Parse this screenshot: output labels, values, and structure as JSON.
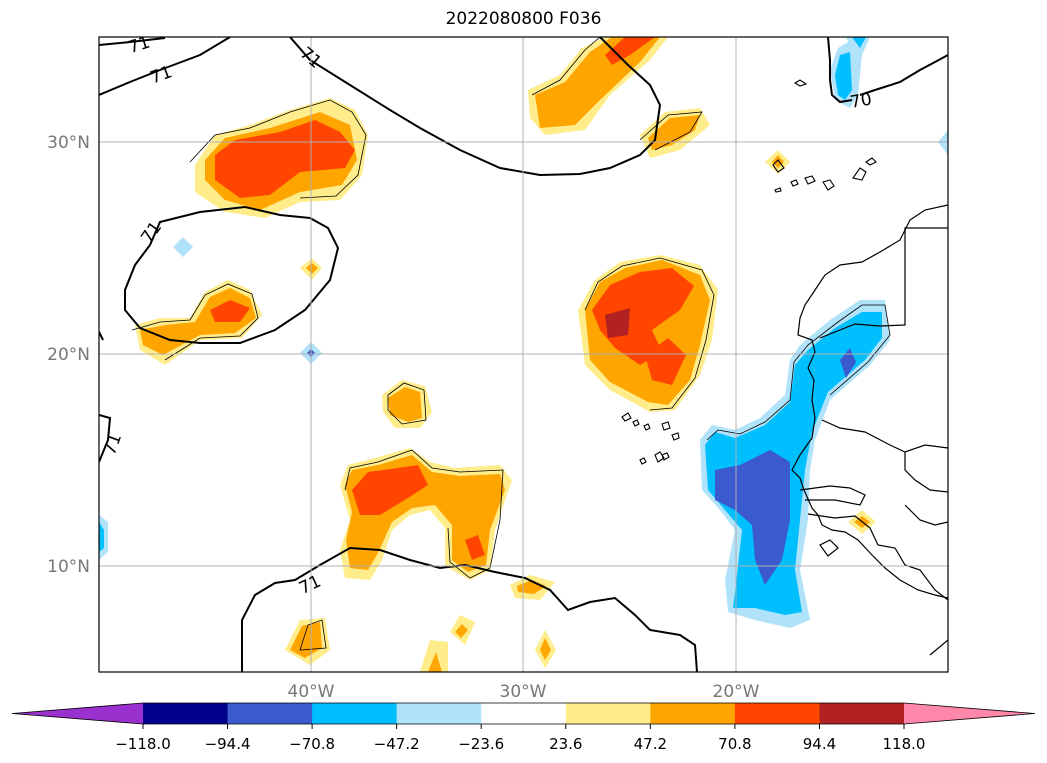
{
  "title": "2022080800 F036",
  "grid": {
    "lat_labels": [
      "30°N",
      "20°N",
      "10°N"
    ],
    "lon_labels": [
      "40°W",
      "30°W",
      "20°W"
    ]
  },
  "contour_labels": [
    "71",
    "71",
    "71",
    "71",
    "71",
    "70"
  ],
  "colorbar": {
    "ticks": [
      "−118.0",
      "−94.4",
      "−70.8",
      "−47.2",
      "−23.6",
      "23.6",
      "47.2",
      "70.8",
      "94.4",
      "118.0"
    ],
    "colors": [
      "#9a30cd",
      "#00008b",
      "#3a5acd",
      "#00bfff",
      "#b0e2fa",
      "#ffffff",
      "#ffec8b",
      "#ffa500",
      "#ff4500",
      "#b22222",
      "#ff88aa"
    ],
    "extend": "both"
  },
  "colors": {
    "pos_light": "#ffec8b",
    "pos_orange": "#ffa500",
    "pos_red": "#ff4500",
    "pos_dark": "#b22222",
    "neg_light": "#b0e2fa",
    "neg_cyan": "#00bfff",
    "neg_blue": "#3a5acd"
  }
}
